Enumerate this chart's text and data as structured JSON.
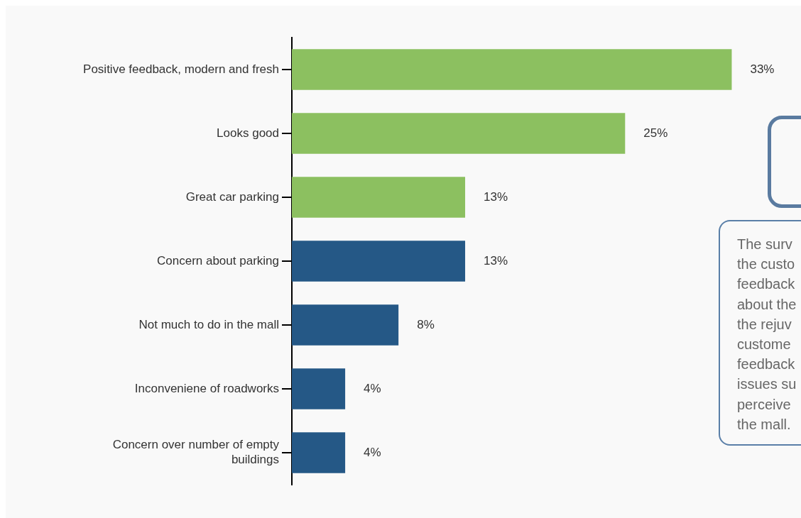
{
  "chart_data": {
    "type": "bar",
    "orientation": "horizontal",
    "categories": [
      "Positive feedback, modern and fresh",
      "Looks good",
      "Great car parking",
      "Concern about parking",
      "Not much to do in the mall",
      "Inconveniene of roadworks",
      "Concern over number of empty buildings"
    ],
    "values": [
      33,
      25,
      13,
      13,
      8,
      4,
      4
    ],
    "colors": [
      "#8cc060",
      "#8cc060",
      "#8cc060",
      "#255886",
      "#255886",
      "#255886",
      "#255886"
    ],
    "value_labels": [
      "33%",
      "25%",
      "13%",
      "13%",
      "8%",
      "4%",
      "4%"
    ],
    "annotations": [
      "The surv\nthe custo\nfeedback\nabout the\nthe rejuv\ncustome\nfeedback\nissues su\nperceive\nthe mall."
    ],
    "grid": false,
    "legend": false
  }
}
